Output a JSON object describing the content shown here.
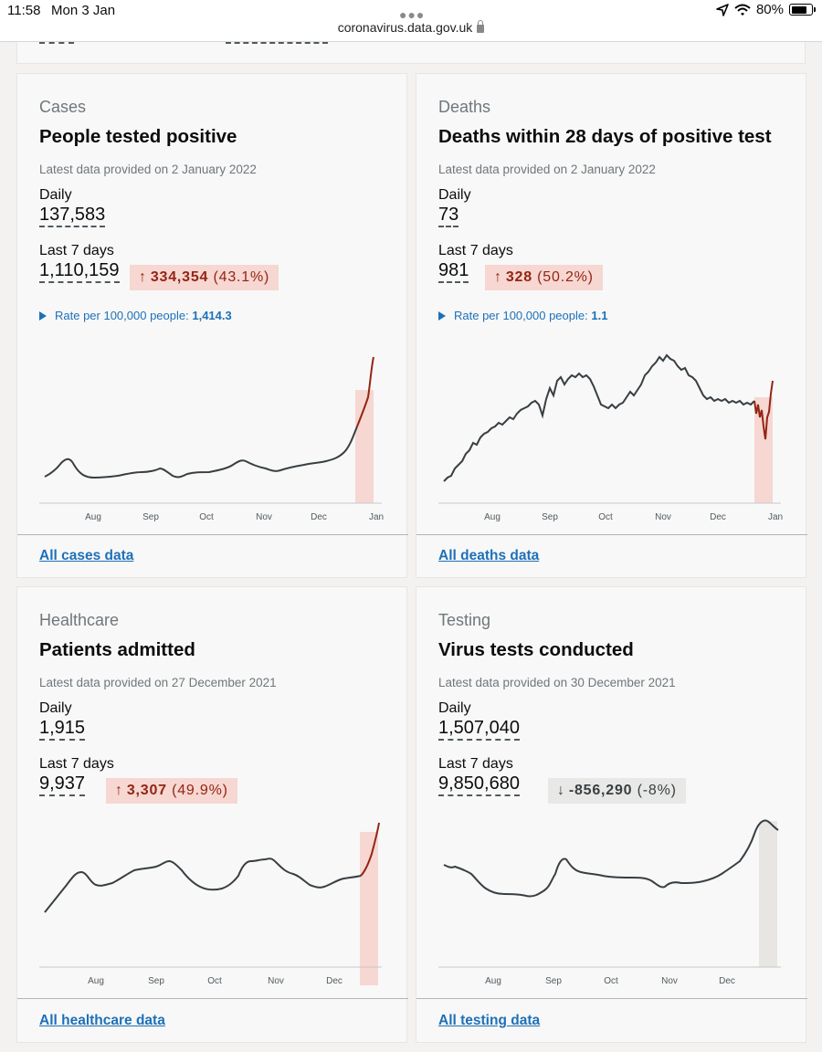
{
  "status_bar": {
    "time": "11:58",
    "date": "Mon 3 Jan",
    "url": "coronavirus.data.gov.uk",
    "battery": "80%"
  },
  "colors": {
    "link": "#1d70b8",
    "up_bg": "#f6d7d2",
    "up_text": "#942514",
    "down_bg": "#e8e8e6",
    "line": "#383f43",
    "highlight_line": "#942514"
  },
  "cards": [
    {
      "category": "Cases",
      "title": "People tested positive",
      "latest": "Latest data provided on 2 January 2022",
      "daily_label": "Daily",
      "daily_value": "137,583",
      "week_label": "Last 7 days",
      "week_value": "1,110,159",
      "change_arrow": "↑",
      "change_value": "334,354",
      "change_pct": "(43.1%)",
      "rate_label": "Rate per 100,000 people:",
      "rate_value": "1,414.3",
      "link": "All cases data",
      "axis": [
        "Aug",
        "Sep",
        "Oct",
        "Nov",
        "Dec",
        "Jan"
      ]
    },
    {
      "category": "Deaths",
      "title": "Deaths within 28 days of positive test",
      "latest": "Latest data provided on 2 January 2022",
      "daily_label": "Daily",
      "daily_value": "73",
      "week_label": "Last 7 days",
      "week_value": "981",
      "change_arrow": "↑",
      "change_value": "328",
      "change_pct": "(50.2%)",
      "rate_label": "Rate per 100,000 people:",
      "rate_value": "1.1",
      "link": "All deaths data",
      "axis": [
        "Aug",
        "Sep",
        "Oct",
        "Nov",
        "Dec",
        "Jan"
      ]
    },
    {
      "category": "Healthcare",
      "title": "Patients admitted",
      "latest": "Latest data provided on 27 December 2021",
      "daily_label": "Daily",
      "daily_value": "1,915",
      "week_label": "Last 7 days",
      "week_value": "9,937",
      "change_arrow": "↑",
      "change_value": "3,307",
      "change_pct": "(49.9%)",
      "link": "All healthcare data",
      "axis": [
        "Aug",
        "Sep",
        "Oct",
        "Nov",
        "Dec"
      ]
    },
    {
      "category": "Testing",
      "title": "Virus tests conducted",
      "latest": "Latest data provided on 30 December 2021",
      "daily_label": "Daily",
      "daily_value": "1,507,040",
      "week_label": "Last 7 days",
      "week_value": "9,850,680",
      "change_arrow": "↓",
      "change_value": "-856,290",
      "change_pct": "(-8%)",
      "link": "All testing data",
      "axis": [
        "Aug",
        "Sep",
        "Oct",
        "Nov",
        "Dec"
      ]
    }
  ]
}
